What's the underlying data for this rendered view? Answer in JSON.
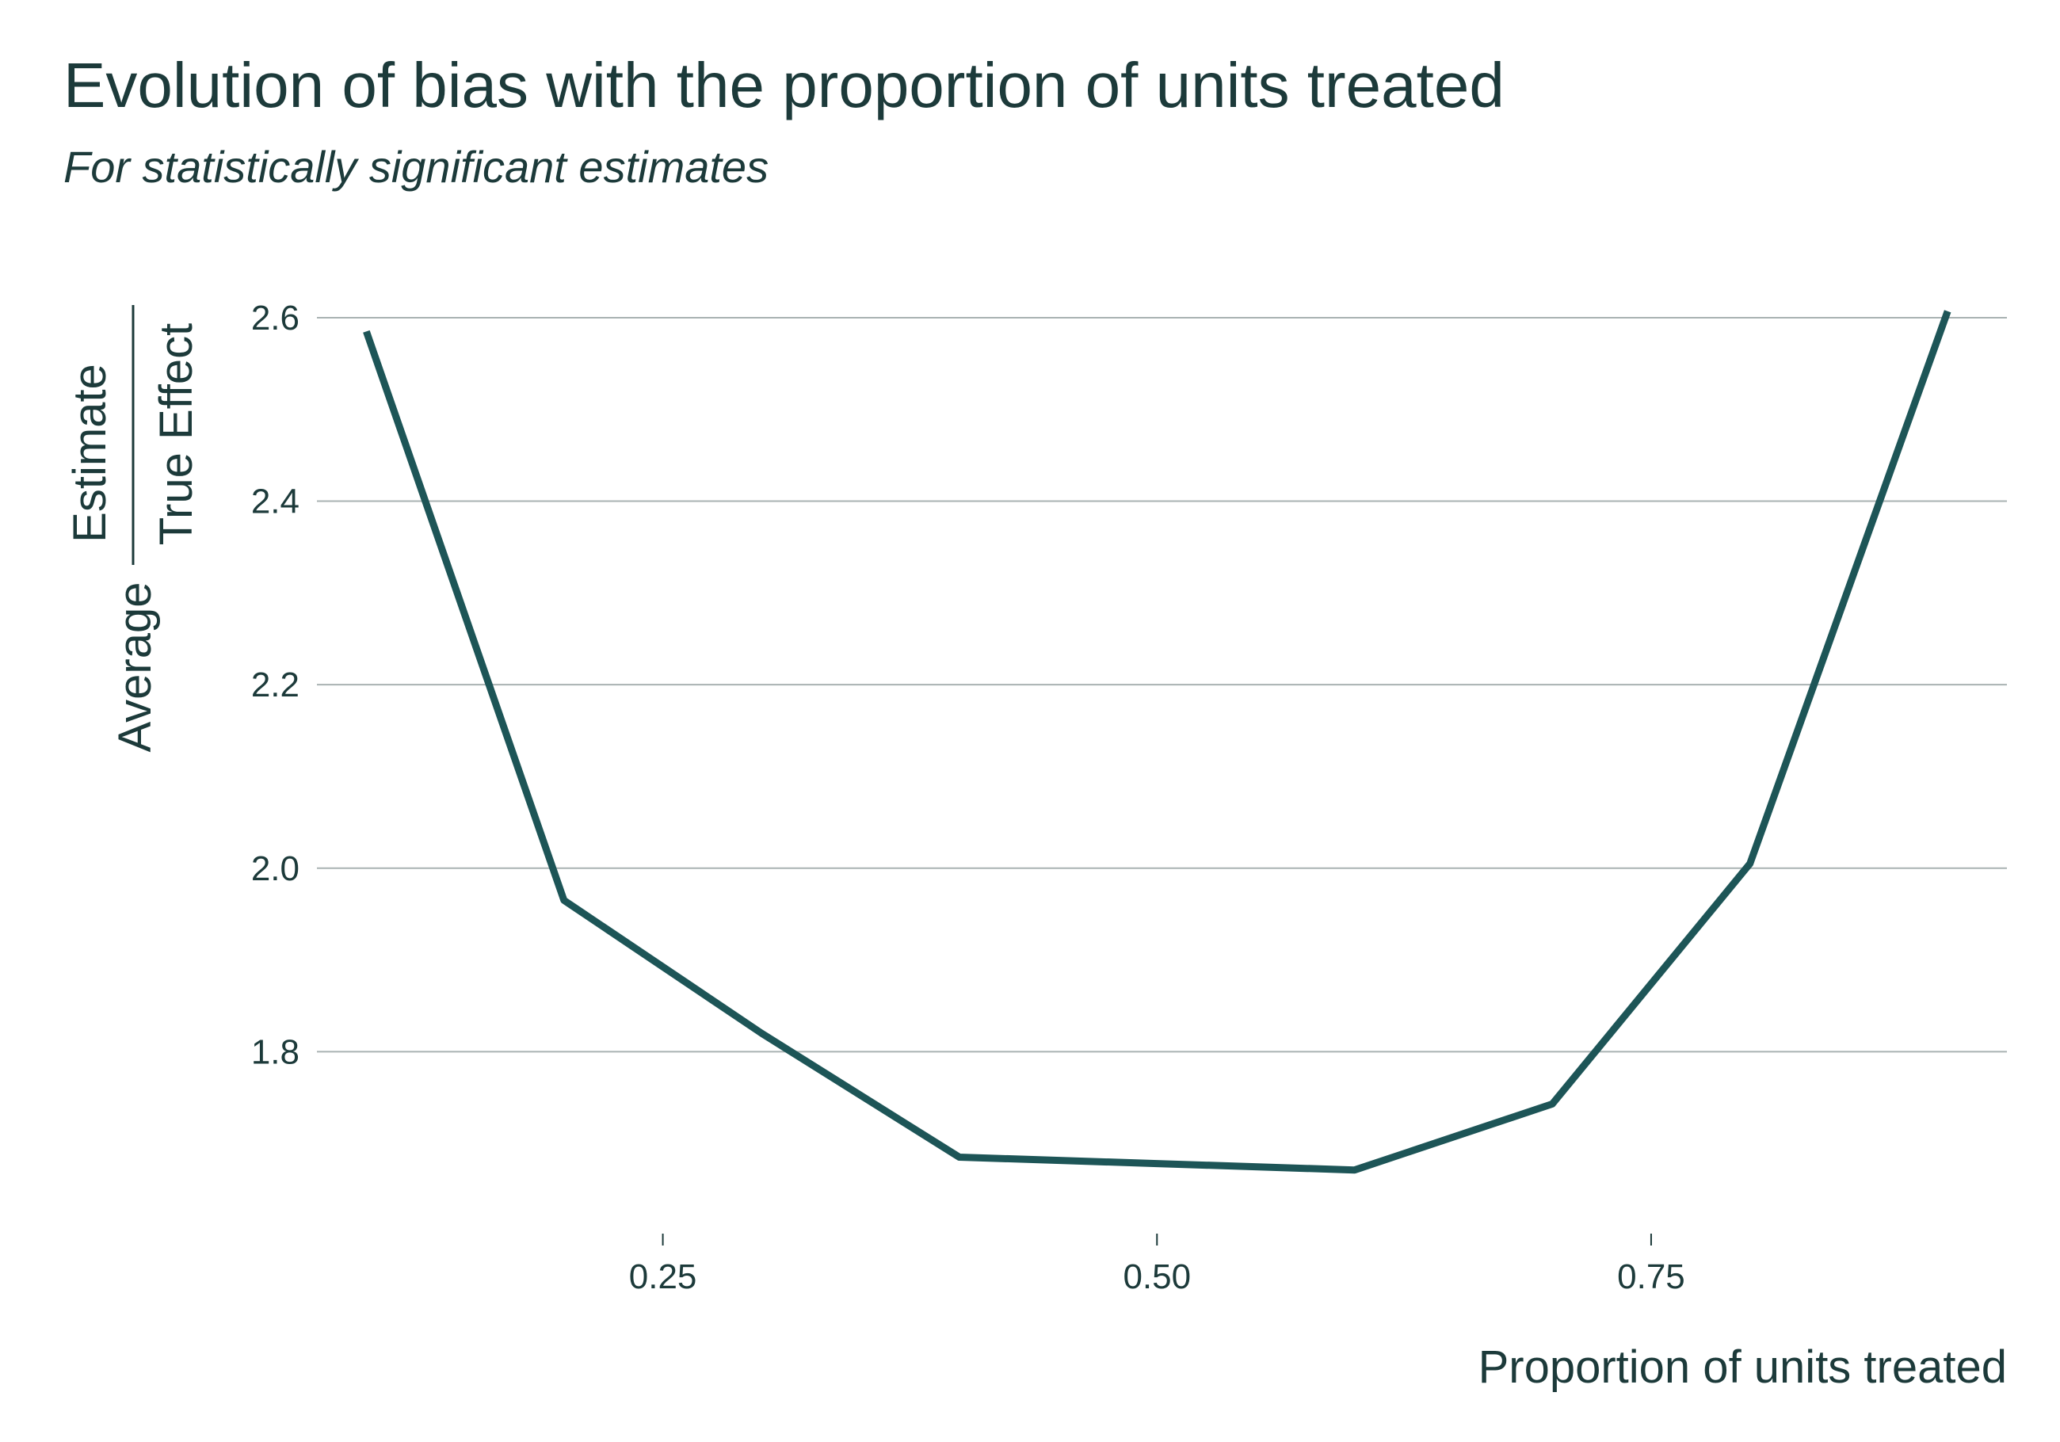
{
  "chart_data": {
    "type": "line",
    "title": "Evolution of bias with the proportion of units treated",
    "subtitle": "For statistically significant estimates",
    "xlabel": "Proportion of units treated",
    "ylabel": {
      "prefix": "Average",
      "numerator": "Estimate",
      "denominator": "True Effect"
    },
    "xlim": [
      0.075,
      0.93
    ],
    "ylim": [
      1.625,
      2.625
    ],
    "x_ticks": [
      0.25,
      0.5,
      0.75
    ],
    "x_tick_labels": [
      "0.25",
      "0.50",
      "0.75"
    ],
    "y_ticks": [
      1.8,
      2.0,
      2.2,
      2.4,
      2.6
    ],
    "y_tick_labels": [
      "1.8",
      "2.0",
      "2.2",
      "2.4",
      "2.6"
    ],
    "grid": "horizontal",
    "line_color": "#1d5557",
    "grid_color": "#a9b2b2",
    "x": [
      0.1,
      0.2,
      0.3,
      0.4,
      0.5,
      0.6,
      0.7,
      0.8,
      0.9
    ],
    "series": [
      {
        "values": [
          2.585,
          1.965,
          1.82,
          1.685,
          1.678,
          1.671,
          1.743,
          2.005,
          2.607
        ]
      }
    ]
  }
}
